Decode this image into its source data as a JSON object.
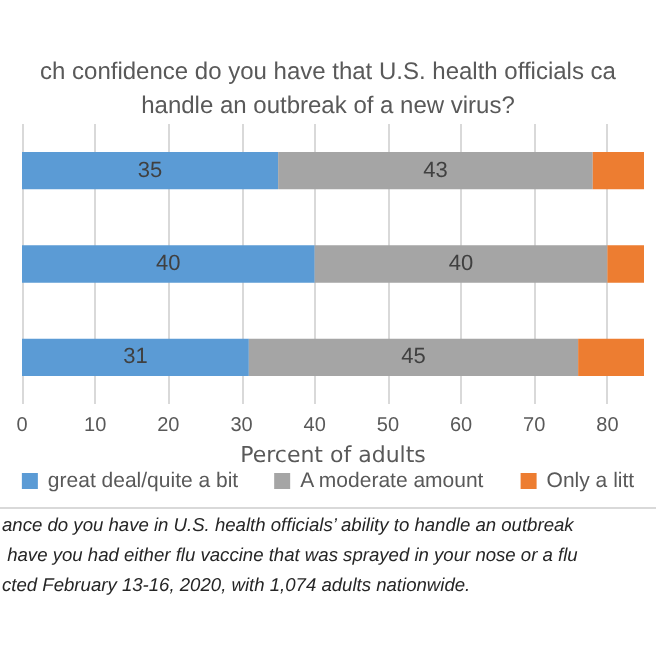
{
  "chart_data": {
    "type": "bar",
    "orientation": "horizontal",
    "stacked": true,
    "title": "ch confidence do you have that U.S. health officials ca\nhandle an outbreak of a new virus?",
    "xlabel": "Percent of adults",
    "categories": [
      null,
      null,
      null
    ],
    "series": [
      {
        "name": "great deal/quite a bit",
        "color": "#5b9bd5",
        "values": [
          35,
          40,
          31
        ],
        "value_labels": [
          "35",
          "40",
          "31"
        ]
      },
      {
        "name": "A moderate amount",
        "color": "#a5a5a5",
        "values": [
          43,
          40,
          45
        ],
        "value_labels": [
          "43",
          "40",
          "45"
        ]
      },
      {
        "name": "Only a litt",
        "color": "#ed7d31",
        "values": [
          7,
          5,
          9
        ],
        "value_labels": [
          null,
          null,
          null
        ]
      }
    ],
    "xlim": [
      0,
      85
    ],
    "xticks": [
      0,
      10,
      20,
      30,
      40,
      50,
      60,
      70,
      80
    ],
    "grid": "x",
    "legend": "bottom",
    "annotations": [
      "ance do you have in U.S. health officials’ ability to handle an outbreak",
      " have you had either flu vaccine that was sprayed in your nose or a flu",
      "cted February 13-16, 2020, with 1,074 adults nationwide."
    ]
  }
}
